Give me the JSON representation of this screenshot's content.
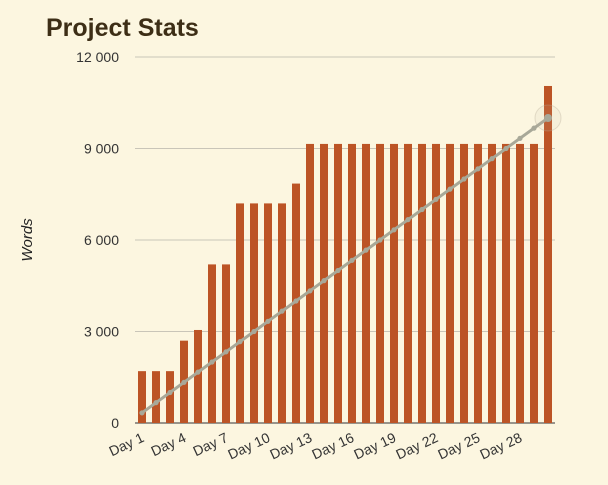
{
  "header": {
    "title": "Project Stats"
  },
  "chart_data": {
    "type": "bar",
    "title": "Project Stats",
    "xlabel": "",
    "ylabel": "Words",
    "ylim": [
      0,
      12000
    ],
    "yticks": [
      0,
      3000,
      6000,
      9000,
      12000
    ],
    "ytick_labels": [
      "0",
      "3 000",
      "6 000",
      "9 000",
      "12 000"
    ],
    "categories": [
      "Day 1",
      "Day 2",
      "Day 3",
      "Day 4",
      "Day 5",
      "Day 6",
      "Day 7",
      "Day 8",
      "Day 9",
      "Day 10",
      "Day 11",
      "Day 12",
      "Day 13",
      "Day 14",
      "Day 15",
      "Day 16",
      "Day 17",
      "Day 18",
      "Day 19",
      "Day 20",
      "Day 21",
      "Day 22",
      "Day 23",
      "Day 24",
      "Day 25",
      "Day 26",
      "Day 27",
      "Day 28",
      "Day 29",
      "Day 30"
    ],
    "xtick_labels": [
      "Day 1",
      "Day 4",
      "Day 7",
      "Day 10",
      "Day 13",
      "Day 16",
      "Day 19",
      "Day 22",
      "Day 25",
      "Day 28"
    ],
    "grid": true,
    "series": [
      {
        "type": "bar",
        "color": "#bc5425",
        "values": [
          1700,
          1700,
          1700,
          2700,
          3050,
          5200,
          5200,
          7200,
          7200,
          7200,
          7200,
          7850,
          9150,
          9150,
          9150,
          9150,
          9150,
          9150,
          9150,
          9150,
          9150,
          9150,
          9150,
          9150,
          9150,
          9150,
          9150,
          9150,
          9150,
          11050
        ]
      },
      {
        "type": "line",
        "color": "#a8a898",
        "values": [
          333,
          667,
          1000,
          1333,
          1667,
          2000,
          2333,
          2667,
          3000,
          3333,
          3667,
          4000,
          4333,
          4667,
          5000,
          5333,
          5667,
          6000,
          6333,
          6667,
          7000,
          7333,
          7667,
          8000,
          8333,
          8667,
          9000,
          9333,
          9667,
          10000
        ]
      }
    ]
  }
}
